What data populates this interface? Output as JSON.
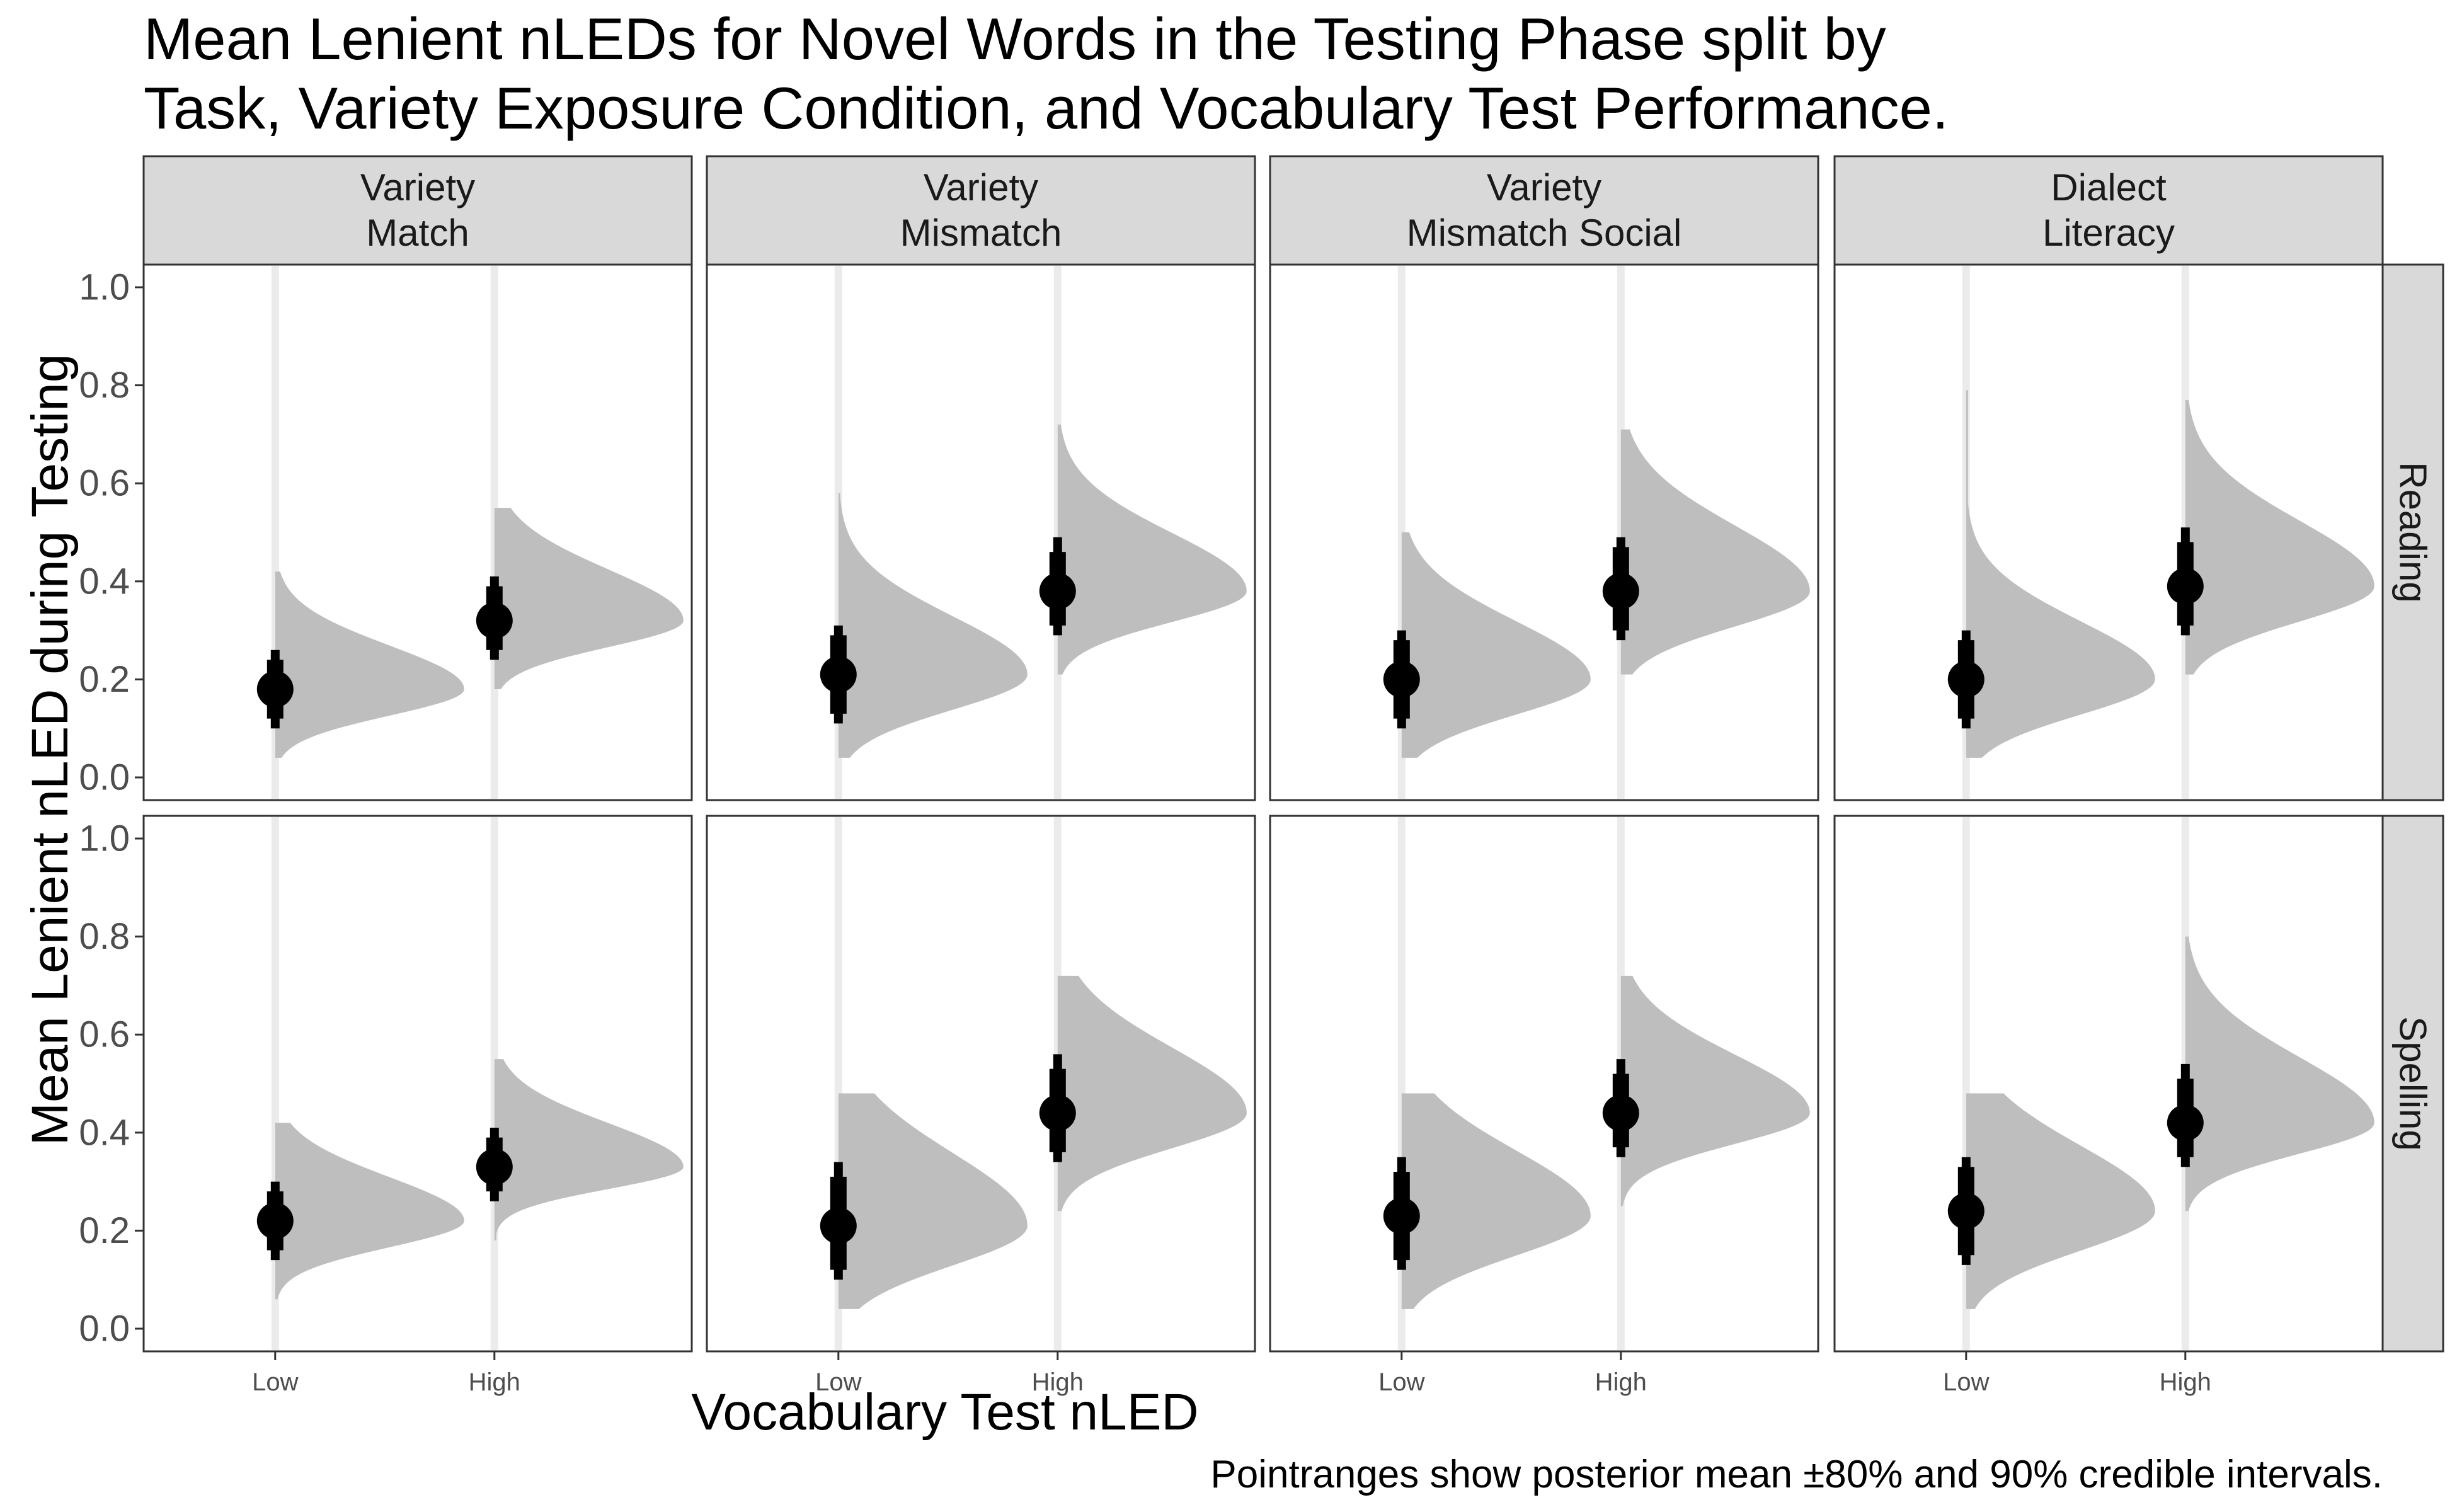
{
  "title_lines": [
    "Mean Lenient nLEDs for Novel Words in the Testing Phase split by",
    "Task, Variety Exposure Condition, and Vocabulary Test Performance."
  ],
  "caption": "Pointranges show posterior mean ±80% and 90% credible intervals.",
  "colors": {
    "density_fill": "#bebebe",
    "vertical_line": "#ebebeb",
    "point": "#000000",
    "strip_bg": "#d9d9d9",
    "panel_border": "#333333"
  },
  "chart_data": {
    "type": "pointrange_halfeye",
    "xlabel": "Vocabulary Test nLED",
    "ylabel": "Mean Lenient nLED during Testing",
    "ylim": [
      0,
      1
    ],
    "yticks": [
      "0.0",
      "0.2",
      "0.4",
      "0.6",
      "0.8",
      "1.0"
    ],
    "categories": [
      "Low",
      "High"
    ],
    "columns": [
      {
        "label_lines": [
          "Variety",
          "Match"
        ]
      },
      {
        "label_lines": [
          "Variety",
          "Mismatch"
        ]
      },
      {
        "label_lines": [
          "Variety",
          "Mismatch Social"
        ]
      },
      {
        "label_lines": [
          "Dialect",
          "Literacy"
        ]
      }
    ],
    "rows": [
      {
        "label": "Reading"
      },
      {
        "label": "Spelling"
      }
    ],
    "panels": [
      {
        "row": "Reading",
        "column": "Variety Match",
        "points": [
          {
            "x": "Low",
            "mean": 0.18,
            "ci80": [
              0.12,
              0.24
            ],
            "ci90": [
              0.1,
              0.26
            ],
            "tails": [
              0.04,
              0.42
            ]
          },
          {
            "x": "High",
            "mean": 0.32,
            "ci80": [
              0.26,
              0.39
            ],
            "ci90": [
              0.24,
              0.41
            ],
            "tails": [
              0.18,
              0.55
            ]
          }
        ]
      },
      {
        "row": "Reading",
        "column": "Variety Mismatch",
        "points": [
          {
            "x": "Low",
            "mean": 0.21,
            "ci80": [
              0.13,
              0.29
            ],
            "ci90": [
              0.11,
              0.31
            ],
            "tails": [
              0.04,
              0.58
            ]
          },
          {
            "x": "High",
            "mean": 0.38,
            "ci80": [
              0.31,
              0.46
            ],
            "ci90": [
              0.29,
              0.49
            ],
            "tails": [
              0.21,
              0.72
            ]
          }
        ]
      },
      {
        "row": "Reading",
        "column": "Variety Mismatch Social",
        "points": [
          {
            "x": "Low",
            "mean": 0.2,
            "ci80": [
              0.12,
              0.28
            ],
            "ci90": [
              0.1,
              0.3
            ],
            "tails": [
              0.04,
              0.5
            ]
          },
          {
            "x": "High",
            "mean": 0.38,
            "ci80": [
              0.3,
              0.47
            ],
            "ci90": [
              0.28,
              0.49
            ],
            "tails": [
              0.21,
              0.71
            ]
          }
        ]
      },
      {
        "row": "Reading",
        "column": "Dialect Literacy",
        "points": [
          {
            "x": "Low",
            "mean": 0.2,
            "ci80": [
              0.12,
              0.28
            ],
            "ci90": [
              0.1,
              0.3
            ],
            "tails": [
              0.04,
              0.79
            ]
          },
          {
            "x": "High",
            "mean": 0.39,
            "ci80": [
              0.31,
              0.48
            ],
            "ci90": [
              0.29,
              0.51
            ],
            "tails": [
              0.21,
              0.77
            ]
          }
        ]
      },
      {
        "row": "Spelling",
        "column": "Variety Match",
        "points": [
          {
            "x": "Low",
            "mean": 0.22,
            "ci80": [
              0.16,
              0.28
            ],
            "ci90": [
              0.14,
              0.3
            ],
            "tails": [
              0.06,
              0.42
            ]
          },
          {
            "x": "High",
            "mean": 0.33,
            "ci80": [
              0.28,
              0.39
            ],
            "ci90": [
              0.26,
              0.41
            ],
            "tails": [
              0.18,
              0.55
            ]
          }
        ]
      },
      {
        "row": "Spelling",
        "column": "Variety Mismatch",
        "points": [
          {
            "x": "Low",
            "mean": 0.21,
            "ci80": [
              0.12,
              0.31
            ],
            "ci90": [
              0.1,
              0.34
            ],
            "tails": [
              0.04,
              0.48
            ]
          },
          {
            "x": "High",
            "mean": 0.44,
            "ci80": [
              0.36,
              0.53
            ],
            "ci90": [
              0.34,
              0.56
            ],
            "tails": [
              0.24,
              0.72
            ]
          }
        ]
      },
      {
        "row": "Spelling",
        "column": "Variety Mismatch Social",
        "points": [
          {
            "x": "Low",
            "mean": 0.23,
            "ci80": [
              0.14,
              0.32
            ],
            "ci90": [
              0.12,
              0.35
            ],
            "tails": [
              0.04,
              0.48
            ]
          },
          {
            "x": "High",
            "mean": 0.44,
            "ci80": [
              0.37,
              0.52
            ],
            "ci90": [
              0.35,
              0.55
            ],
            "tails": [
              0.25,
              0.72
            ]
          }
        ]
      },
      {
        "row": "Spelling",
        "column": "Dialect Literacy",
        "points": [
          {
            "x": "Low",
            "mean": 0.24,
            "ci80": [
              0.15,
              0.33
            ],
            "ci90": [
              0.13,
              0.35
            ],
            "tails": [
              0.04,
              0.48
            ]
          },
          {
            "x": "High",
            "mean": 0.42,
            "ci80": [
              0.35,
              0.51
            ],
            "ci90": [
              0.33,
              0.54
            ],
            "tails": [
              0.24,
              0.8
            ]
          }
        ]
      }
    ]
  }
}
